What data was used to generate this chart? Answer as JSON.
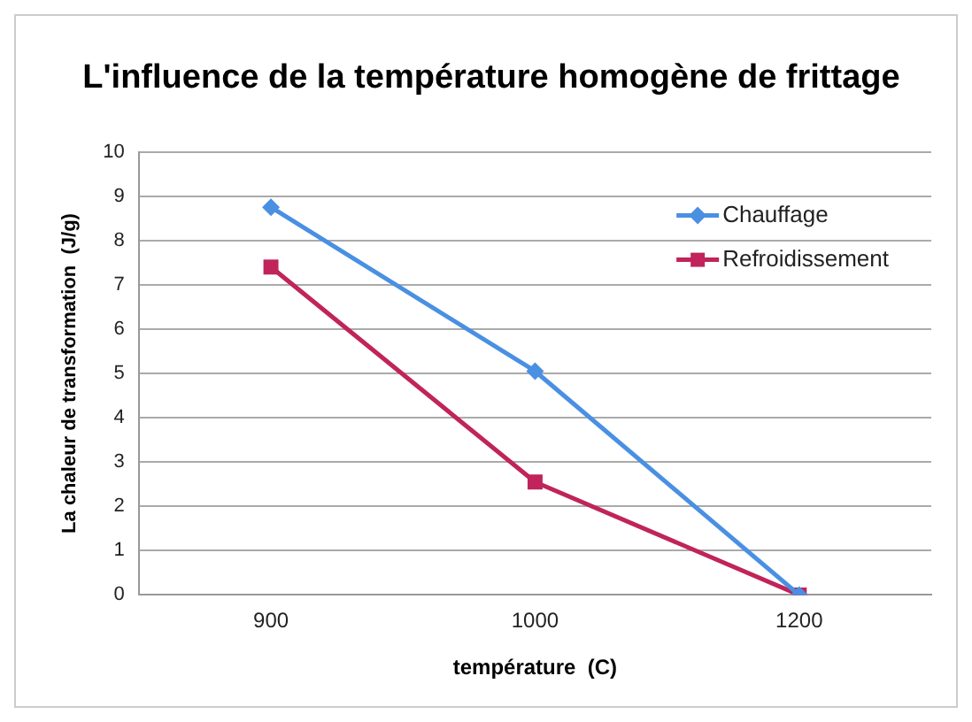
{
  "chart_data": {
    "type": "line",
    "title": "L'influence de la température homogène de frittage",
    "xlabel": "température  (C)",
    "ylabel": "La chaleur de transformation  (J/g)",
    "categories": [
      "900",
      "1000",
      "1200"
    ],
    "series": [
      {
        "name": "Chauffage",
        "color": "#4a90e2",
        "values": [
          8.75,
          5.05,
          0
        ],
        "marker": "diamond"
      },
      {
        "name": "Refroidissement",
        "color": "#c0245a",
        "values": [
          7.4,
          2.55,
          0
        ],
        "marker": "square"
      }
    ],
    "ylim": [
      0,
      10
    ],
    "yticks": [
      0,
      1,
      2,
      3,
      4,
      5,
      6,
      7,
      8,
      9,
      10
    ],
    "grid": "y",
    "legend": "top right",
    "line_style": "solid"
  }
}
